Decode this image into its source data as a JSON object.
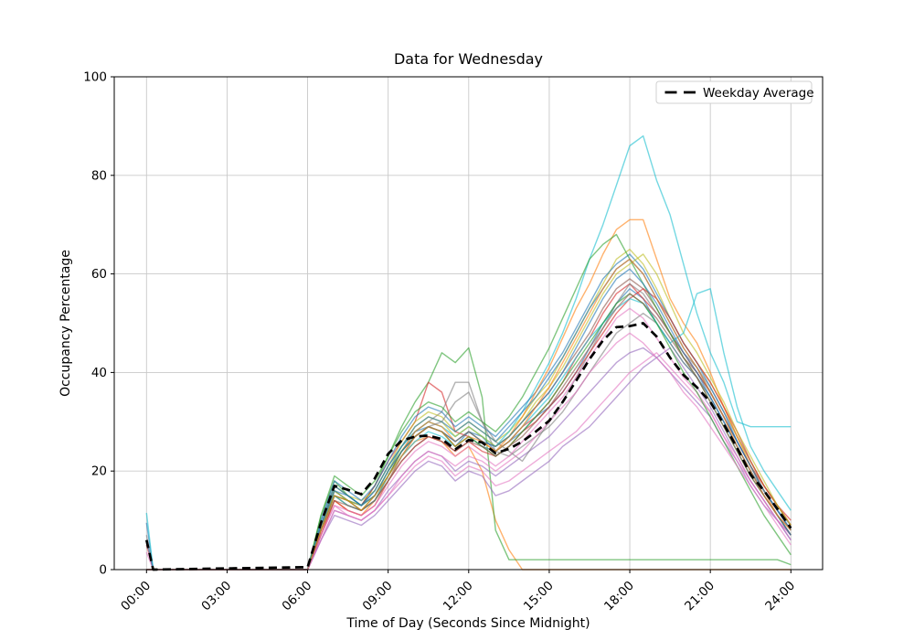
{
  "chart_data": {
    "type": "line",
    "title": "Data for Wednesday",
    "xlabel": "Time of Day (Seconds Since Midnight)",
    "ylabel": "Occupancy Percentage",
    "x_ticks": {
      "hours": [
        0,
        3,
        6,
        9,
        12,
        15,
        18,
        21,
        24
      ],
      "labels": [
        "00:00",
        "03:00",
        "06:00",
        "09:00",
        "12:00",
        "15:00",
        "18:00",
        "21:00",
        "24:00"
      ]
    },
    "y_ticks": [
      0,
      20,
      40,
      60,
      80,
      100
    ],
    "ylim": [
      0,
      100
    ],
    "xlim_hours": [
      -1.2,
      25.2
    ],
    "grid": true,
    "grid_color": "#c9c9c9",
    "legend": {
      "position": "upper right",
      "entries": [
        {
          "label": "Weekday Average",
          "style": "dashed",
          "color": "#000000"
        }
      ]
    },
    "series_start_hour": 6,
    "sample_interval_hours": 0.5,
    "member_opacity": 0.6,
    "average_series": {
      "name": "Weekday Average",
      "color": "#000000",
      "dashed": true,
      "spike0": 6,
      "values": [
        0.5,
        9.5,
        17,
        16.2,
        15.3,
        18.5,
        23.5,
        26.2,
        27,
        27.2,
        26.5,
        24.4,
        26.3,
        25.8,
        23.6,
        24.5,
        26,
        28,
        30.2,
        34,
        38.3,
        42.7,
        46.5,
        49.2,
        49.4,
        50,
        47.3,
        43,
        39.5,
        37,
        34,
        29.5,
        24.7,
        19.3,
        16,
        12.3,
        8.4
      ]
    },
    "member_series": [
      {
        "color": "#1f77b4",
        "spike0": 9.5,
        "values": [
          0,
          10,
          17,
          15,
          13,
          16,
          21,
          25,
          28,
          29,
          28,
          25,
          28,
          27,
          24,
          26,
          28,
          31,
          33,
          36,
          40,
          45,
          50,
          54,
          57,
          55,
          50,
          46,
          42,
          39,
          35,
          30,
          25,
          20,
          16,
          12,
          9
        ]
      },
      {
        "color": "#ff7f0e",
        "spike0": 0,
        "values": [
          0,
          7,
          14,
          12,
          11,
          14,
          18,
          23,
          26,
          27,
          26,
          23,
          25,
          20,
          10,
          4,
          0,
          0,
          0,
          0,
          0,
          0,
          0,
          0,
          0,
          0,
          0,
          0,
          0,
          0,
          0,
          0,
          0,
          0,
          0,
          0,
          0
        ]
      },
      {
        "color": "#2ca02c",
        "spike0": 0,
        "values": [
          0,
          11,
          18,
          15,
          13,
          17,
          23,
          29,
          34,
          38,
          44,
          42,
          45,
          35,
          8,
          2,
          2,
          2,
          2,
          2,
          2,
          2,
          2,
          2,
          2,
          2,
          2,
          2,
          2,
          2,
          2,
          2,
          2,
          2,
          2,
          2,
          1
        ]
      },
      {
        "color": "#d62728",
        "spike0": 5,
        "values": [
          0,
          8,
          16,
          14,
          13,
          17,
          22,
          26,
          30,
          38,
          36,
          28,
          27,
          25,
          24,
          26,
          29,
          31,
          34,
          38,
          43,
          47,
          52,
          56,
          58,
          55,
          52,
          48,
          44,
          40,
          36,
          31,
          26,
          21,
          17,
          13,
          10
        ]
      },
      {
        "color": "#9467bd",
        "spike0": 0,
        "values": [
          0,
          6,
          12,
          11,
          10,
          12,
          16,
          19,
          22,
          24,
          23,
          20,
          22,
          21,
          19,
          21,
          23,
          25,
          27,
          30,
          33,
          36,
          39,
          42,
          44,
          45,
          43,
          40,
          37,
          34,
          31,
          26,
          22,
          17,
          13,
          10,
          7
        ]
      },
      {
        "color": "#8c564b",
        "spike0": 0,
        "values": [
          0,
          9,
          16,
          14,
          13,
          15,
          20,
          24,
          27,
          29,
          28,
          26,
          28,
          26,
          25,
          27,
          30,
          33,
          36,
          40,
          44,
          48,
          53,
          57,
          59,
          57,
          53,
          48,
          43,
          40,
          36,
          31,
          26,
          21,
          16,
          12,
          8
        ]
      },
      {
        "color": "#e377c2",
        "spike0": 3.5,
        "values": [
          0,
          7,
          13,
          11,
          10,
          12,
          15,
          18,
          21,
          23,
          22,
          19,
          21,
          20,
          17,
          18,
          20,
          22,
          24,
          26,
          28,
          31,
          34,
          37,
          40,
          42,
          44,
          41,
          38,
          35,
          32,
          27,
          22,
          18,
          14,
          10,
          6
        ]
      },
      {
        "color": "#7f7f7f",
        "spike0": 7,
        "values": [
          0,
          8,
          15,
          14,
          12,
          14,
          19,
          24,
          28,
          30,
          32,
          38,
          38,
          30,
          26,
          24,
          22,
          26,
          30,
          34,
          39,
          44,
          49,
          54,
          58,
          56,
          52,
          48,
          44,
          41,
          37,
          32,
          27,
          22,
          17,
          13,
          9
        ]
      },
      {
        "color": "#bcbd22",
        "spike0": 0,
        "values": [
          0,
          9,
          17,
          15,
          14,
          16,
          21,
          26,
          30,
          32,
          31,
          28,
          30,
          28,
          26,
          28,
          31,
          35,
          38,
          43,
          48,
          53,
          58,
          63,
          65,
          62,
          57,
          51,
          46,
          42,
          38,
          33,
          27,
          22,
          17,
          13,
          9
        ]
      },
      {
        "color": "#17becf",
        "spike0": 11.5,
        "values": [
          0,
          8,
          16,
          14,
          13,
          15,
          20,
          25,
          28,
          30,
          29,
          27,
          29,
          27,
          25,
          28,
          32,
          37,
          42,
          48,
          55,
          63,
          70,
          78,
          86,
          88,
          79,
          72,
          62,
          52,
          44,
          38,
          30,
          29,
          29,
          29,
          29
        ]
      },
      {
        "color": "#1f77b4",
        "spike0": 0,
        "values": [
          0,
          10,
          18,
          16,
          14,
          17,
          22,
          27,
          31,
          33,
          32,
          29,
          31,
          29,
          27,
          30,
          33,
          36,
          40,
          44,
          49,
          54,
          59,
          62,
          64,
          61,
          56,
          51,
          46,
          42,
          37,
          32,
          26,
          21,
          16,
          12,
          8
        ]
      },
      {
        "color": "#ff7f0e",
        "spike0": 0,
        "values": [
          0,
          8,
          15,
          13,
          12,
          14,
          19,
          24,
          28,
          30,
          29,
          26,
          28,
          26,
          24,
          27,
          31,
          36,
          41,
          47,
          53,
          58,
          64,
          69,
          71,
          71,
          63,
          55,
          50,
          46,
          40,
          33,
          27,
          21,
          16,
          11,
          7
        ]
      },
      {
        "color": "#2ca02c",
        "spike0": 0,
        "values": [
          0,
          11,
          19,
          17,
          15,
          18,
          23,
          28,
          32,
          34,
          33,
          30,
          32,
          30,
          28,
          31,
          35,
          40,
          45,
          51,
          57,
          63,
          66,
          68,
          63,
          58,
          53,
          48,
          43,
          39,
          34,
          29,
          24,
          19,
          15,
          11,
          7
        ]
      },
      {
        "color": "#d62728",
        "spike0": 0,
        "values": [
          0,
          7,
          14,
          12,
          11,
          13,
          18,
          22,
          25,
          27,
          26,
          24,
          26,
          24,
          23,
          25,
          28,
          30,
          33,
          36,
          40,
          44,
          48,
          52,
          55,
          57,
          55,
          51,
          46,
          42,
          38,
          33,
          28,
          22,
          17,
          13,
          9
        ]
      },
      {
        "color": "#9467bd",
        "spike0": 0,
        "values": [
          0,
          6,
          11,
          10,
          9,
          11,
          14,
          17,
          20,
          22,
          21,
          18,
          20,
          19,
          15,
          16,
          18,
          20,
          22,
          25,
          27,
          29,
          32,
          35,
          38,
          41,
          43,
          45,
          41,
          37,
          33,
          28,
          23,
          18,
          14,
          10,
          6
        ]
      },
      {
        "color": "#7f7f7f",
        "spike0": 0,
        "values": [
          0,
          8,
          15,
          13,
          12,
          14,
          18,
          23,
          27,
          29,
          30,
          34,
          36,
          30,
          24,
          23,
          25,
          27,
          29,
          32,
          36,
          40,
          44,
          48,
          50,
          52,
          50,
          46,
          42,
          39,
          35,
          30,
          25,
          20,
          15,
          11,
          8
        ]
      },
      {
        "color": "#bcbd22",
        "spike0": 0,
        "values": [
          0,
          9,
          16,
          14,
          13,
          15,
          20,
          25,
          29,
          31,
          30,
          27,
          29,
          27,
          25,
          27,
          30,
          34,
          37,
          41,
          46,
          51,
          56,
          60,
          62,
          64,
          60,
          54,
          48,
          44,
          39,
          34,
          28,
          23,
          18,
          13,
          9
        ]
      },
      {
        "color": "#17becf",
        "spike0": 0,
        "values": [
          0,
          8,
          15,
          13,
          12,
          14,
          19,
          23,
          26,
          28,
          27,
          25,
          27,
          25,
          24,
          26,
          29,
          32,
          35,
          39,
          43,
          47,
          50,
          53,
          55,
          54,
          50,
          46,
          48,
          56,
          57,
          44,
          33,
          25,
          20,
          16,
          12
        ]
      },
      {
        "color": "#1f77b4",
        "spike0": 6,
        "values": [
          0,
          9,
          17,
          15,
          13,
          16,
          21,
          25,
          29,
          31,
          30,
          28,
          30,
          28,
          26,
          29,
          32,
          35,
          39,
          43,
          48,
          53,
          57,
          61,
          63,
          60,
          55,
          50,
          45,
          41,
          36,
          31,
          26,
          21,
          16,
          12,
          8
        ]
      },
      {
        "color": "#e377c2",
        "spike0": 0,
        "values": [
          0,
          7,
          13,
          12,
          11,
          13,
          17,
          21,
          24,
          26,
          25,
          23,
          25,
          23,
          21,
          23,
          26,
          29,
          32,
          35,
          39,
          43,
          47,
          51,
          53,
          51,
          47,
          43,
          39,
          36,
          32,
          27,
          23,
          18,
          14,
          10,
          7
        ]
      },
      {
        "color": "#2ca02c",
        "spike0": 0,
        "values": [
          0,
          8,
          15,
          14,
          12,
          15,
          19,
          24,
          27,
          29,
          28,
          25,
          27,
          25,
          23,
          25,
          28,
          31,
          34,
          38,
          42,
          46,
          50,
          54,
          56,
          54,
          50,
          45,
          40,
          36,
          31,
          26,
          21,
          16,
          11,
          7,
          3
        ]
      },
      {
        "color": "#8c564b",
        "spike0": 0,
        "values": [
          0,
          8,
          14,
          13,
          12,
          14,
          18,
          22,
          25,
          27,
          26,
          24,
          26,
          25,
          23,
          25,
          27,
          30,
          33,
          37,
          41,
          45,
          49,
          53,
          56,
          54,
          51,
          47,
          43,
          39,
          34,
          29,
          24,
          19,
          15,
          11,
          7
        ]
      },
      {
        "color": "#1f77b4",
        "spike0": 0,
        "values": [
          0,
          9,
          16,
          15,
          13,
          15,
          20,
          24,
          27,
          29,
          28,
          26,
          28,
          26,
          25,
          27,
          30,
          33,
          36,
          40,
          45,
          50,
          55,
          59,
          61,
          58,
          54,
          49,
          44,
          40,
          35,
          30,
          25,
          20,
          15,
          11,
          7
        ]
      },
      {
        "color": "#ff7f0e",
        "spike0": 0,
        "values": [
          0,
          8,
          15,
          14,
          12,
          15,
          19,
          23,
          27,
          29,
          28,
          25,
          27,
          26,
          24,
          26,
          29,
          33,
          37,
          42,
          47,
          52,
          57,
          61,
          63,
          60,
          55,
          50,
          45,
          41,
          36,
          31,
          25,
          20,
          15,
          11,
          8
        ]
      },
      {
        "color": "#e377c2",
        "spike0": 0,
        "values": [
          0,
          6,
          12,
          11,
          10,
          12,
          15,
          19,
          22,
          24,
          23,
          21,
          23,
          22,
          20,
          22,
          24,
          27,
          30,
          33,
          36,
          40,
          43,
          46,
          48,
          46,
          43,
          40,
          36,
          33,
          29,
          25,
          21,
          17,
          13,
          9,
          5
        ]
      }
    ]
  }
}
